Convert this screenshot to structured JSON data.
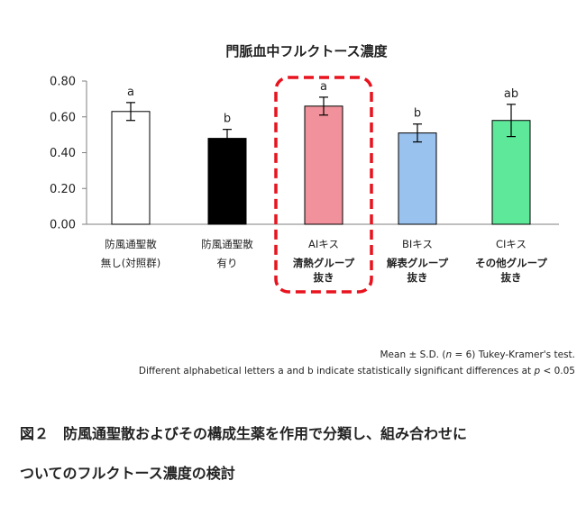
{
  "chart_data": {
    "type": "bar",
    "title": "門脈血中フルクトース濃度",
    "ylim": [
      0,
      0.8
    ],
    "yticks": [
      "0.00",
      "0.20",
      "0.40",
      "0.60",
      "0.80"
    ],
    "grid": false,
    "categories": [
      {
        "lines": [
          "防風通聖散",
          "無し(対照群)"
        ],
        "bold_lines": []
      },
      {
        "lines": [
          "防風通聖散",
          "有り"
        ],
        "bold_lines": []
      },
      {
        "lines": [
          "AIキス"
        ],
        "bold_lines": [
          "清熱グループ",
          "抜き"
        ]
      },
      {
        "lines": [
          "BIキス"
        ],
        "bold_lines": [
          "解表グループ",
          "抜き"
        ]
      },
      {
        "lines": [
          "CIキス"
        ],
        "bold_lines": [
          "その他グループ",
          "抜き"
        ]
      }
    ],
    "values": [
      0.63,
      0.48,
      0.66,
      0.51,
      0.58
    ],
    "errors": [
      0.05,
      0.05,
      0.05,
      0.05,
      0.09
    ],
    "letters": [
      "a",
      "b",
      "a",
      "b",
      "ab"
    ],
    "colors": [
      "#ffffff",
      "#000000",
      "#f0919b",
      "#99c2ee",
      "#5ee89a"
    ],
    "highlight_index": 2,
    "highlight_color": "#e8131f"
  },
  "notes": {
    "line1_before": "Mean ± S.D. (",
    "line1_n": "n",
    "line1_after": " = 6) Tukey-Kramer's test.",
    "line2_before": "Different alphabetical letters a and b indicate statistically significant differences at ",
    "line2_p": "p",
    "line2_after": " < 0.05"
  },
  "caption": {
    "line1": "図２　防風通聖散およびその構成生薬を作用で分類し、組み合わせに",
    "line2": "ついてのフルクトース濃度の検討"
  }
}
